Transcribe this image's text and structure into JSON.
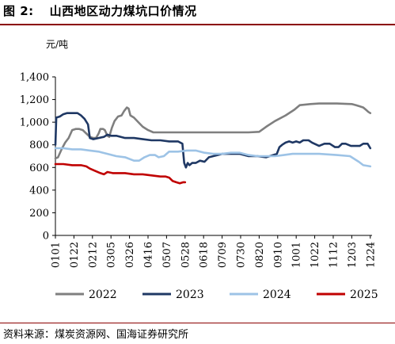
{
  "title": {
    "figure_label": "图 2:",
    "text": "山西地区动力煤坑口价情况"
  },
  "source": "资料来源：煤炭资源网、国海证券研究所",
  "colors": {
    "s2022": "#7f7f7f",
    "s2023": "#1f3864",
    "s2024": "#9dc3e6",
    "s2025": "#c00000",
    "rule": "#8B0000"
  },
  "chart_data": {
    "type": "line",
    "unit_label": "元/吨",
    "ylim": [
      0,
      1400
    ],
    "yticks": [
      0,
      200,
      400,
      600,
      800,
      1000,
      1200,
      1400
    ],
    "ytick_labels": [
      "0",
      "200",
      "400",
      "600",
      "800",
      "1,000",
      "1,200",
      "1,400"
    ],
    "x_axis": "day of year (MMDD)",
    "xlim_days": [
      1,
      360
    ],
    "xtick_labels": [
      "0101",
      "0122",
      "0212",
      "0305",
      "0326",
      "0416",
      "0507",
      "0528",
      "0618",
      "0709",
      "0730",
      "0820",
      "0910",
      "1001",
      "1022",
      "1112",
      "1203",
      "1224"
    ],
    "xtick_days": [
      1,
      22,
      43,
      64,
      85,
      106,
      127,
      148,
      169,
      190,
      211,
      232,
      253,
      274,
      295,
      316,
      337,
      358
    ],
    "legend": {
      "placement": "bottom"
    },
    "series": [
      {
        "name": "2022",
        "key": "s2022",
        "points": [
          [
            1,
            680
          ],
          [
            4,
            690
          ],
          [
            8,
            760
          ],
          [
            12,
            820
          ],
          [
            16,
            860
          ],
          [
            20,
            930
          ],
          [
            24,
            940
          ],
          [
            28,
            940
          ],
          [
            32,
            930
          ],
          [
            36,
            900
          ],
          [
            40,
            870
          ],
          [
            44,
            860
          ],
          [
            47,
            860
          ],
          [
            50,
            900
          ],
          [
            52,
            940
          ],
          [
            55,
            940
          ],
          [
            57,
            930
          ],
          [
            60,
            880
          ],
          [
            62,
            870
          ],
          [
            65,
            950
          ],
          [
            68,
            1010
          ],
          [
            72,
            1050
          ],
          [
            76,
            1060
          ],
          [
            79,
            1100
          ],
          [
            82,
            1130
          ],
          [
            84,
            1120
          ],
          [
            86,
            1060
          ],
          [
            90,
            1040
          ],
          [
            95,
            1000
          ],
          [
            100,
            960
          ],
          [
            106,
            930
          ],
          [
            112,
            910
          ],
          [
            120,
            910
          ],
          [
            140,
            910
          ],
          [
            170,
            910
          ],
          [
            200,
            910
          ],
          [
            220,
            910
          ],
          [
            232,
            915
          ],
          [
            240,
            960
          ],
          [
            250,
            1010
          ],
          [
            262,
            1060
          ],
          [
            272,
            1110
          ],
          [
            278,
            1150
          ],
          [
            290,
            1160
          ],
          [
            300,
            1165
          ],
          [
            320,
            1165
          ],
          [
            337,
            1160
          ],
          [
            342,
            1150
          ],
          [
            346,
            1140
          ],
          [
            350,
            1130
          ],
          [
            353,
            1110
          ],
          [
            356,
            1090
          ],
          [
            358,
            1080
          ]
        ]
      },
      {
        "name": "2023",
        "key": "s2023",
        "points": [
          [
            1,
            800
          ],
          [
            2,
            1040
          ],
          [
            6,
            1050
          ],
          [
            10,
            1070
          ],
          [
            14,
            1080
          ],
          [
            20,
            1080
          ],
          [
            26,
            1080
          ],
          [
            30,
            1060
          ],
          [
            34,
            1030
          ],
          [
            38,
            980
          ],
          [
            40,
            860
          ],
          [
            44,
            850
          ],
          [
            50,
            860
          ],
          [
            56,
            870
          ],
          [
            60,
            890
          ],
          [
            64,
            880
          ],
          [
            70,
            880
          ],
          [
            80,
            860
          ],
          [
            90,
            860
          ],
          [
            100,
            850
          ],
          [
            110,
            840
          ],
          [
            120,
            840
          ],
          [
            130,
            830
          ],
          [
            140,
            830
          ],
          [
            145,
            810
          ],
          [
            147,
            640
          ],
          [
            149,
            600
          ],
          [
            151,
            640
          ],
          [
            153,
            620
          ],
          [
            156,
            640
          ],
          [
            160,
            640
          ],
          [
            165,
            660
          ],
          [
            170,
            650
          ],
          [
            175,
            690
          ],
          [
            180,
            700
          ],
          [
            185,
            710
          ],
          [
            190,
            720
          ],
          [
            200,
            720
          ],
          [
            210,
            720
          ],
          [
            220,
            700
          ],
          [
            230,
            700
          ],
          [
            240,
            690
          ],
          [
            248,
            710
          ],
          [
            252,
            720
          ],
          [
            255,
            780
          ],
          [
            258,
            800
          ],
          [
            262,
            820
          ],
          [
            266,
            830
          ],
          [
            270,
            820
          ],
          [
            274,
            830
          ],
          [
            278,
            820
          ],
          [
            282,
            840
          ],
          [
            288,
            840
          ],
          [
            292,
            820
          ],
          [
            300,
            790
          ],
          [
            306,
            810
          ],
          [
            312,
            810
          ],
          [
            318,
            780
          ],
          [
            322,
            780
          ],
          [
            326,
            810
          ],
          [
            330,
            810
          ],
          [
            336,
            790
          ],
          [
            340,
            790
          ],
          [
            346,
            790
          ],
          [
            350,
            810
          ],
          [
            355,
            810
          ],
          [
            358,
            770
          ]
        ]
      },
      {
        "name": "2024",
        "key": "s2024",
        "points": [
          [
            1,
            770
          ],
          [
            10,
            770
          ],
          [
            20,
            760
          ],
          [
            30,
            760
          ],
          [
            40,
            750
          ],
          [
            50,
            740
          ],
          [
            60,
            720
          ],
          [
            70,
            700
          ],
          [
            80,
            690
          ],
          [
            90,
            660
          ],
          [
            96,
            660
          ],
          [
            102,
            690
          ],
          [
            108,
            710
          ],
          [
            114,
            710
          ],
          [
            118,
            690
          ],
          [
            124,
            700
          ],
          [
            130,
            740
          ],
          [
            140,
            740
          ],
          [
            150,
            750
          ],
          [
            160,
            750
          ],
          [
            170,
            730
          ],
          [
            180,
            720
          ],
          [
            190,
            720
          ],
          [
            200,
            730
          ],
          [
            210,
            730
          ],
          [
            220,
            710
          ],
          [
            230,
            700
          ],
          [
            240,
            700
          ],
          [
            250,
            700
          ],
          [
            260,
            710
          ],
          [
            270,
            720
          ],
          [
            280,
            720
          ],
          [
            300,
            720
          ],
          [
            320,
            710
          ],
          [
            335,
            700
          ],
          [
            345,
            650
          ],
          [
            350,
            620
          ],
          [
            358,
            610
          ]
        ]
      },
      {
        "name": "2025",
        "key": "s2025",
        "points": [
          [
            1,
            630
          ],
          [
            10,
            630
          ],
          [
            20,
            620
          ],
          [
            30,
            620
          ],
          [
            36,
            610
          ],
          [
            40,
            590
          ],
          [
            46,
            570
          ],
          [
            52,
            550
          ],
          [
            56,
            540
          ],
          [
            60,
            560
          ],
          [
            66,
            550
          ],
          [
            72,
            550
          ],
          [
            80,
            550
          ],
          [
            90,
            540
          ],
          [
            100,
            540
          ],
          [
            110,
            530
          ],
          [
            120,
            520
          ],
          [
            126,
            520
          ],
          [
            130,
            510
          ],
          [
            134,
            480
          ],
          [
            138,
            470
          ],
          [
            142,
            460
          ],
          [
            146,
            470
          ],
          [
            148,
            470
          ]
        ]
      }
    ]
  }
}
